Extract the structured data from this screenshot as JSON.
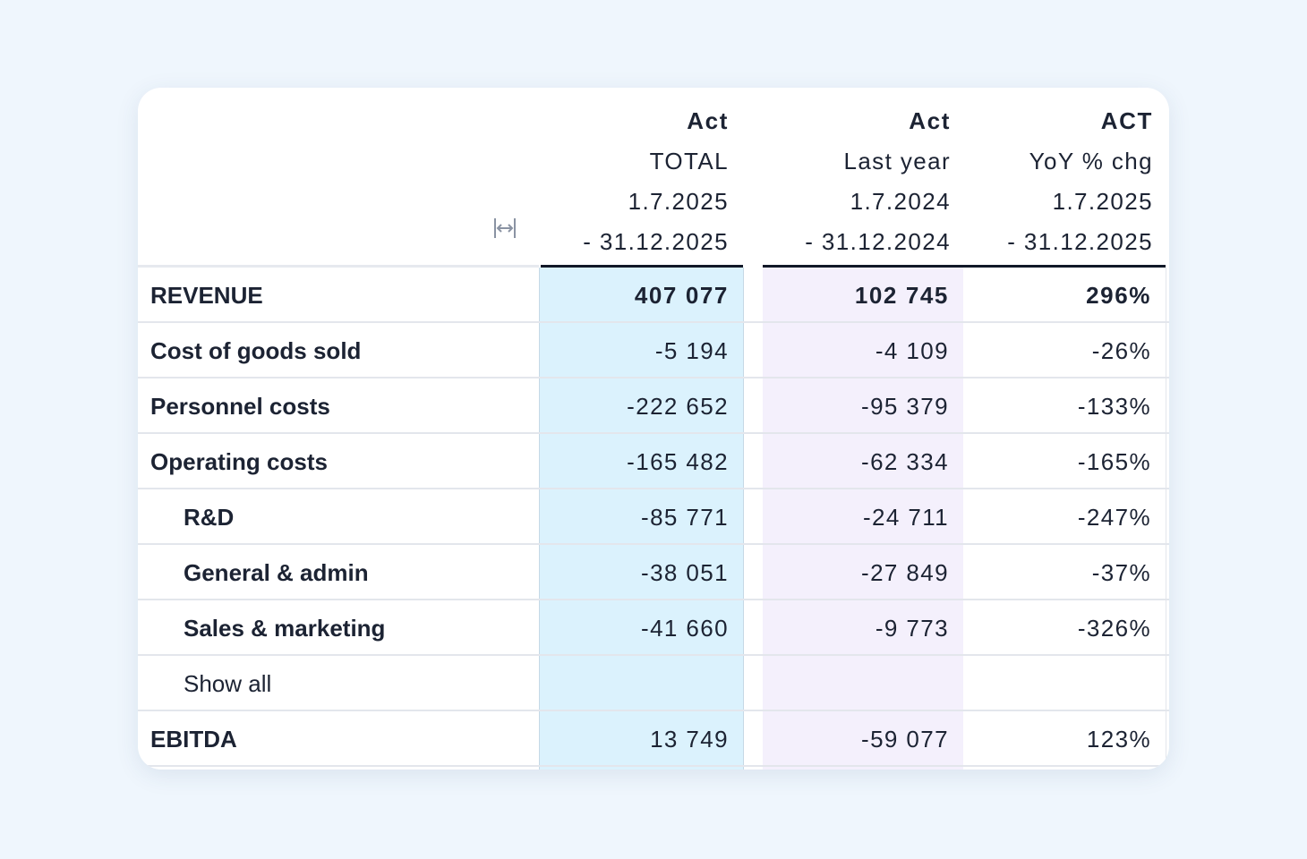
{
  "columns": [
    {
      "title": "Act",
      "subtitle": "TOTAL",
      "date_from": "1.7.2025",
      "date_to": "- 31.12.2025"
    },
    {
      "title": "Act",
      "subtitle": "Last year",
      "date_from": "1.7.2024",
      "date_to": "- 31.12.2024"
    },
    {
      "title": "ACT",
      "subtitle": "YoY % chg",
      "date_from": "1.7.2025",
      "date_to": "- 31.12.2025"
    }
  ],
  "resize_icon": "column-resize-icon",
  "rows": [
    {
      "label": "REVENUE",
      "indent": 0,
      "values": [
        "407 077",
        "102 745",
        "296%"
      ],
      "bold_values": true,
      "pct_sign": "positive"
    },
    {
      "label": "Cost of goods sold",
      "indent": 0,
      "values": [
        "-5 194",
        "-4 109",
        "-26%"
      ],
      "pct_sign": "negative"
    },
    {
      "label": "Personnel costs",
      "indent": 0,
      "values": [
        "-222 652",
        "-95 379",
        "-133%"
      ],
      "pct_sign": "negative"
    },
    {
      "label": "Operating costs",
      "indent": 0,
      "values": [
        "-165 482",
        "-62 334",
        "-165%"
      ],
      "pct_sign": "negative"
    },
    {
      "label": "R&D",
      "indent": 1,
      "values": [
        "-85 771",
        "-24 711",
        "-247%"
      ],
      "pct_sign": "negative"
    },
    {
      "label": "General & admin",
      "indent": 1,
      "values": [
        "-38 051",
        "-27 849",
        "-37%"
      ],
      "pct_sign": "negative"
    },
    {
      "label": "Sales & marketing",
      "indent": 1,
      "values": [
        "-41 660",
        "-9 773",
        "-326%"
      ],
      "pct_sign": "negative"
    },
    {
      "label": "Show all",
      "indent": 1,
      "values": [
        "",
        "",
        ""
      ],
      "is_link": true
    },
    {
      "label": "EBITDA",
      "indent": 0,
      "values": [
        "13 749",
        "-59 077",
        "123%"
      ],
      "pct_sign": "positive"
    }
  ],
  "colors": {
    "positive": "#2e7d32",
    "negative": "#e0201a",
    "link": "#1677d2",
    "column_total_bg": "#dbf2fd",
    "column_last_year_bg": "#f4f0fc"
  }
}
